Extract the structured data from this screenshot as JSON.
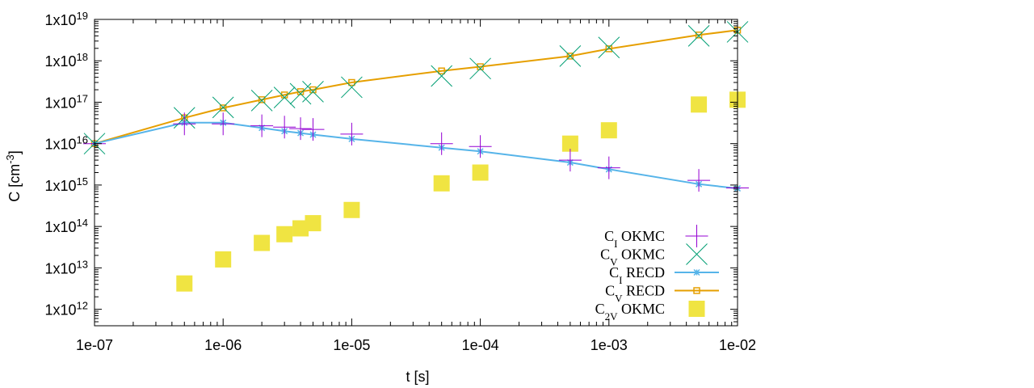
{
  "chart_data": {
    "type": "scatter",
    "title": "",
    "xlabel": "t [s]",
    "ylabel": "C [cm⁻³]",
    "xscale": "log",
    "yscale": "log",
    "xlim": [
      1e-07,
      0.01
    ],
    "ylim": [
      400000000000.0,
      1e+19
    ],
    "grid": false,
    "legend_position": "bottom-right",
    "x_ticks": [
      {
        "value": 1e-07,
        "label": "1e-07"
      },
      {
        "value": 1e-06,
        "label": "1e-06"
      },
      {
        "value": 1e-05,
        "label": "1e-05"
      },
      {
        "value": 0.0001,
        "label": "1e-04"
      },
      {
        "value": 0.001,
        "label": "1e-03"
      },
      {
        "value": 0.01,
        "label": "1e-02"
      }
    ],
    "y_ticks": [
      {
        "value": 1000000000000.0,
        "mantissa": "1x10",
        "exp": "12"
      },
      {
        "value": 10000000000000.0,
        "mantissa": "1x10",
        "exp": "13"
      },
      {
        "value": 100000000000000.0,
        "mantissa": "1x10",
        "exp": "14"
      },
      {
        "value": 1000000000000000.0,
        "mantissa": "1x10",
        "exp": "15"
      },
      {
        "value": 1e+16,
        "mantissa": "1x10",
        "exp": "16"
      },
      {
        "value": 1e+17,
        "mantissa": "1x10",
        "exp": "17"
      },
      {
        "value": 1e+18,
        "mantissa": "1x10",
        "exp": "18"
      },
      {
        "value": 1e+19,
        "mantissa": "1x10",
        "exp": "19"
      }
    ],
    "series": [
      {
        "name": "CI OKMC",
        "label_main": "C",
        "label_sub": "I",
        "label_rest": " OKMC",
        "style": "plus",
        "color": "#9400d3",
        "x": [
          1e-07,
          5e-07,
          1e-06,
          2e-06,
          3e-06,
          4e-06,
          5e-06,
          1e-05,
          5e-05,
          0.0001,
          0.0005,
          0.001,
          0.005,
          0.01
        ],
        "y": [
          1e+16,
          3e+16,
          3e+16,
          2.7e+16,
          2.5e+16,
          2.3e+16,
          2.2e+16,
          1.7e+16,
          1e+16,
          8500000000000000.0,
          4000000000000000.0,
          2600000000000000.0,
          1300000000000000.0,
          850000000000000.0
        ]
      },
      {
        "name": "CV OKMC",
        "label_main": "C",
        "label_sub": "V",
        "label_rest": " OKMC",
        "style": "cross",
        "color": "#009e73",
        "x": [
          1e-07,
          5e-07,
          1e-06,
          2e-06,
          3e-06,
          4e-06,
          5e-06,
          1e-05,
          5e-05,
          0.0001,
          0.0005,
          0.001,
          0.005,
          0.01
        ],
        "y": [
          1e+16,
          4.2e+16,
          7.5e+16,
          1.1e+17,
          1.3e+17,
          1.6e+17,
          1.8e+17,
          2.3e+17,
          4.3e+17,
          6.5e+17,
          1.3e+18,
          2.1e+18,
          4e+18,
          5e+18
        ]
      },
      {
        "name": "CI RECD",
        "label_main": "C",
        "label_sub": "I",
        "label_rest": " RECD",
        "style": "line-star",
        "color": "#56b4e9",
        "x": [
          1e-07,
          5e-07,
          1e-06,
          2e-06,
          3e-06,
          4e-06,
          5e-06,
          1e-05,
          5e-05,
          0.0001,
          0.0005,
          0.001,
          0.005,
          0.01
        ],
        "y": [
          1e+16,
          3.2e+16,
          3.2e+16,
          2.4e+16,
          2e+16,
          1.8e+16,
          1.65e+16,
          1.3e+16,
          8000000000000000.0,
          6500000000000000.0,
          3500000000000000.0,
          2400000000000000.0,
          1050000000000000.0,
          830000000000000.0
        ]
      },
      {
        "name": "CV RECD",
        "label_main": "C",
        "label_sub": "V",
        "label_rest": " RECD",
        "style": "line-square",
        "color": "#e69f00",
        "x": [
          1e-07,
          5e-07,
          1e-06,
          2e-06,
          3e-06,
          4e-06,
          5e-06,
          1e-05,
          5e-05,
          0.0001,
          0.0005,
          0.001,
          0.005,
          0.01
        ],
        "y": [
          1e+16,
          4.2e+16,
          7.3e+16,
          1.15e+17,
          1.5e+17,
          1.8e+17,
          2e+17,
          3e+17,
          5.7e+17,
          7.2e+17,
          1.3e+18,
          1.95e+18,
          4.2e+18,
          5.5e+18
        ]
      },
      {
        "name": "C2V OKMC",
        "label_main": "C",
        "label_sub": "2V",
        "label_rest": " OKMC",
        "style": "filled-square",
        "color": "#f0e442",
        "x": [
          5e-07,
          1e-06,
          2e-06,
          3e-06,
          4e-06,
          5e-06,
          1e-05,
          5e-05,
          0.0001,
          0.0005,
          0.001,
          0.005,
          0.01
        ],
        "y": [
          4200000000000.0,
          16000000000000.0,
          40000000000000.0,
          65000000000000.0,
          90000000000000.0,
          120000000000000.0,
          250000000000000.0,
          1100000000000000.0,
          2000000000000000.0,
          1e+16,
          2.1e+16,
          8.8e+16,
          1.15e+17
        ]
      }
    ]
  }
}
